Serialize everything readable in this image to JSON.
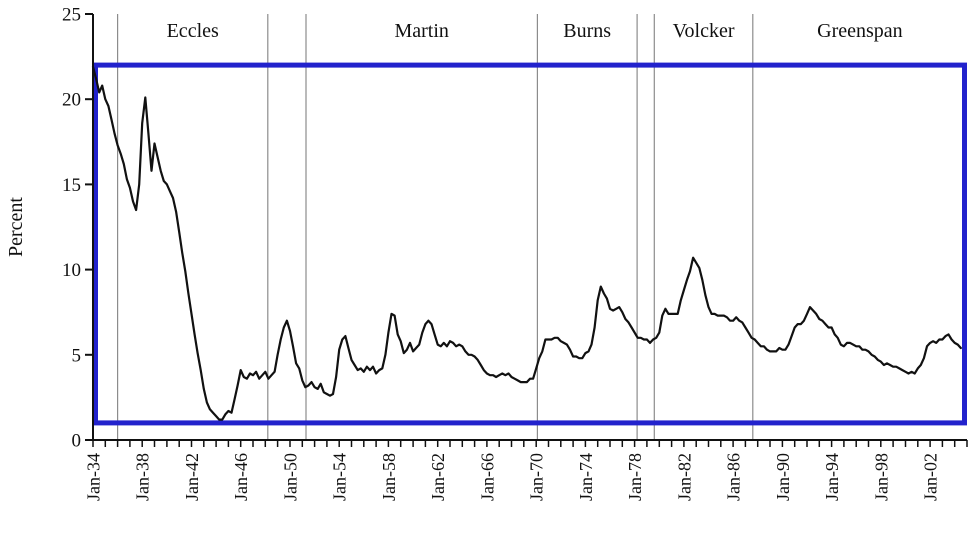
{
  "chart_data": {
    "type": "line",
    "title": "",
    "ylabel": "Percent",
    "xlabel": "",
    "xlim": [
      1934,
      2005
    ],
    "ylim": [
      0,
      25
    ],
    "grid": false,
    "legend": "none",
    "y_ticks": [
      0,
      5,
      10,
      15,
      20,
      25
    ],
    "y_tick_labels": [
      "0",
      "5",
      "10",
      "15",
      "20",
      "25"
    ],
    "x_minor_tick_every_years": 1,
    "x_label_years": [
      1934,
      1938,
      1942,
      1946,
      1950,
      1954,
      1958,
      1962,
      1966,
      1970,
      1974,
      1978,
      1982,
      1986,
      1990,
      1994,
      1998,
      2002
    ],
    "x_tick_labels": [
      "Jan-34",
      "Jan-38",
      "Jan-42",
      "Jan-46",
      "Jan-50",
      "Jan-54",
      "Jan-58",
      "Jan-62",
      "Jan-66",
      "Jan-70",
      "Jan-74",
      "Jan-78",
      "Jan-82",
      "Jan-86",
      "Jan-90",
      "Jan-94",
      "Jan-98",
      "Jan-02"
    ],
    "eras": [
      {
        "label": "Eccles",
        "start": 1936.0,
        "end": 1948.2
      },
      {
        "label": "Martin",
        "start": 1951.3,
        "end": 1970.1
      },
      {
        "label": "Burns",
        "start": 1970.1,
        "end": 1978.2
      },
      {
        "label": "Volcker",
        "start": 1979.6,
        "end": 1987.6
      },
      {
        "label": "Greenspan",
        "start": 1987.6,
        "end": 2005.0
      }
    ],
    "era_dividers": [
      1936.0,
      1948.2,
      1951.3,
      1970.1,
      1978.2,
      1979.6,
      1987.6
    ],
    "highlight_box": {
      "y_min": 1,
      "y_max": 22,
      "color": "#2222cc"
    },
    "colors": {
      "line": "#111111",
      "axis": "#111111",
      "divider": "#8c8c8c"
    },
    "series": [
      {
        "x_start": 1934.0,
        "x_step": 0.25,
        "values": [
          21.9,
          21.2,
          20.4,
          20.8,
          20.0,
          19.6,
          18.8,
          18.0,
          17.3,
          16.8,
          16.2,
          15.3,
          14.8,
          14.0,
          13.5,
          15.0,
          18.6,
          20.1,
          18.0,
          15.8,
          17.4,
          16.6,
          15.8,
          15.2,
          15.0,
          14.6,
          14.2,
          13.4,
          12.2,
          11.0,
          9.9,
          8.6,
          7.4,
          6.2,
          5.1,
          4.1,
          3.0,
          2.2,
          1.8,
          1.6,
          1.4,
          1.2,
          1.2,
          1.5,
          1.7,
          1.6,
          2.4,
          3.2,
          4.1,
          3.7,
          3.6,
          3.9,
          3.8,
          4.0,
          3.6,
          3.8,
          4.0,
          3.6,
          3.8,
          4.0,
          5.0,
          5.9,
          6.6,
          7.0,
          6.4,
          5.5,
          4.5,
          4.2,
          3.5,
          3.1,
          3.2,
          3.4,
          3.1,
          3.0,
          3.3,
          2.8,
          2.7,
          2.6,
          2.7,
          3.7,
          5.3,
          5.9,
          6.1,
          5.4,
          4.7,
          4.4,
          4.1,
          4.2,
          4.0,
          4.3,
          4.1,
          4.3,
          3.9,
          4.1,
          4.2,
          5.0,
          6.3,
          7.4,
          7.3,
          6.2,
          5.8,
          5.1,
          5.3,
          5.7,
          5.2,
          5.4,
          5.6,
          6.3,
          6.8,
          7.0,
          6.8,
          6.2,
          5.6,
          5.5,
          5.7,
          5.5,
          5.8,
          5.7,
          5.5,
          5.6,
          5.5,
          5.2,
          5.0,
          5.0,
          4.9,
          4.7,
          4.4,
          4.1,
          3.9,
          3.8,
          3.8,
          3.7,
          3.8,
          3.9,
          3.8,
          3.9,
          3.7,
          3.6,
          3.5,
          3.4,
          3.4,
          3.4,
          3.6,
          3.6,
          4.2,
          4.8,
          5.2,
          5.9,
          5.9,
          5.9,
          6.0,
          6.0,
          5.8,
          5.7,
          5.6,
          5.3,
          4.9,
          4.9,
          4.8,
          4.8,
          5.1,
          5.2,
          5.6,
          6.6,
          8.2,
          9.0,
          8.6,
          8.3,
          7.7,
          7.6,
          7.7,
          7.8,
          7.5,
          7.1,
          6.9,
          6.6,
          6.3,
          6.0,
          6.0,
          5.9,
          5.9,
          5.7,
          5.9,
          6.0,
          6.3,
          7.3,
          7.7,
          7.4,
          7.4,
          7.4,
          7.4,
          8.2,
          8.8,
          9.4,
          9.9,
          10.7,
          10.4,
          10.1,
          9.4,
          8.5,
          7.8,
          7.4,
          7.4,
          7.3,
          7.3,
          7.3,
          7.2,
          7.0,
          7.0,
          7.2,
          7.0,
          6.9,
          6.6,
          6.3,
          6.0,
          5.9,
          5.7,
          5.5,
          5.5,
          5.3,
          5.2,
          5.2,
          5.2,
          5.4,
          5.3,
          5.3,
          5.6,
          6.1,
          6.6,
          6.8,
          6.8,
          7.0,
          7.4,
          7.8,
          7.6,
          7.4,
          7.1,
          7.0,
          6.8,
          6.6,
          6.6,
          6.2,
          6.0,
          5.6,
          5.5,
          5.7,
          5.7,
          5.6,
          5.5,
          5.5,
          5.3,
          5.3,
          5.2,
          5.0,
          4.9,
          4.7,
          4.6,
          4.4,
          4.5,
          4.4,
          4.3,
          4.3,
          4.2,
          4.1,
          4.0,
          3.9,
          4.0,
          3.9,
          4.2,
          4.4,
          4.8,
          5.5,
          5.7,
          5.8,
          5.7,
          5.9,
          5.9,
          6.1,
          6.2,
          5.9,
          5.7,
          5.6,
          5.4
        ]
      }
    ]
  }
}
